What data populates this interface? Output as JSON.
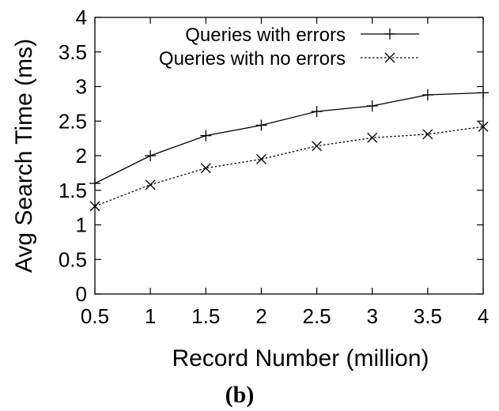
{
  "chart_data": {
    "type": "line",
    "xlabel": "Record Number (million)",
    "ylabel": "Avg Search Time (ms)",
    "xlim": [
      0.5,
      4
    ],
    "ylim": [
      0,
      4
    ],
    "x_ticks": [
      0.5,
      1,
      1.5,
      2,
      2.5,
      3,
      3.5,
      4
    ],
    "x_tick_labels": [
      "0.5",
      "1",
      "1.5",
      "2",
      "2.5",
      "3",
      "3.5",
      "4"
    ],
    "y_ticks": [
      0,
      0.5,
      1,
      1.5,
      2,
      2.5,
      3,
      3.5,
      4
    ],
    "y_tick_labels": [
      "0",
      "0.5",
      "1",
      "1.5",
      "2",
      "2.5",
      "3",
      "3.5",
      "4"
    ],
    "legend_position": "top-right",
    "x": [
      0.5,
      1,
      1.5,
      2,
      2.5,
      3,
      3.5,
      4
    ],
    "series": [
      {
        "name": "Queries with errors",
        "marker": "plus",
        "line": "solid",
        "values": [
          1.6,
          2.0,
          2.29,
          2.44,
          2.64,
          2.72,
          2.88,
          2.91
        ]
      },
      {
        "name": "Queries with no errors",
        "marker": "cross",
        "line": "dotted",
        "values": [
          1.27,
          1.58,
          1.82,
          1.95,
          2.14,
          2.26,
          2.31,
          2.42
        ]
      }
    ],
    "caption": "(b)"
  }
}
